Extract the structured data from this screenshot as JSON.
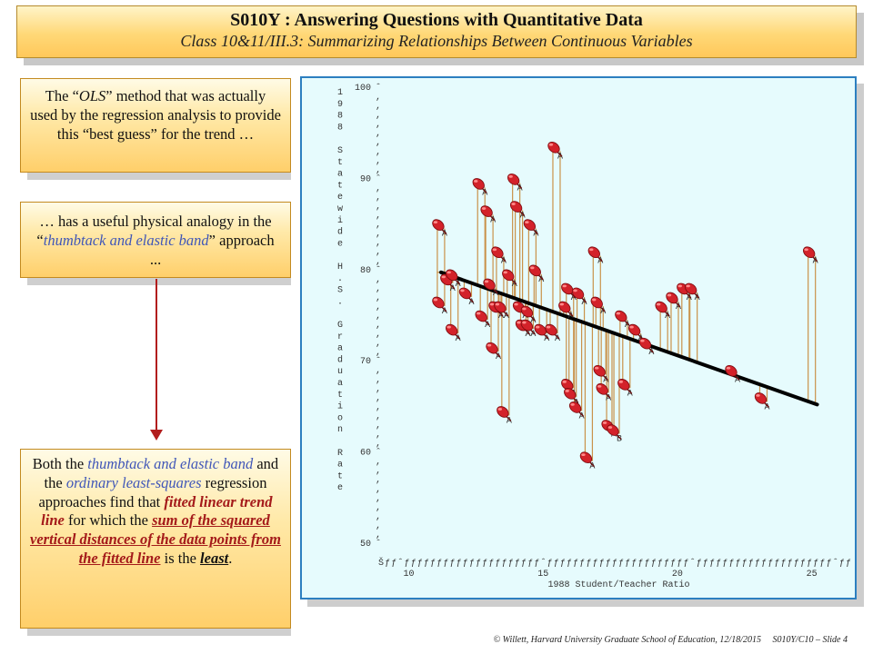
{
  "header": {
    "title": "S010Y : Answering Questions with Quantitative Data",
    "subtitle": "Class 10&11/III.3: Summarizing Relationships Between Continuous Variables"
  },
  "callouts": {
    "box1": {
      "p1": "The “",
      "p2": "OLS",
      "p3": "” method that was actually used by the regression analysis to provide this “best guess” for the trend …"
    },
    "box2": {
      "p1": "… has a useful physical analogy in the “",
      "p2": "thumbtack and elastic band",
      "p3": "” approach ..."
    },
    "box3": {
      "p1": "Both the ",
      "p2": "thumbtack and elastic band",
      "p3": " and the ",
      "p4": "ordinary least-squares",
      "p5": " regression approaches find that ",
      "p6": "fitted linear trend line",
      "p7": " for which the ",
      "p8": "sum of the",
      "p9": " squared vertical distances of the data points from the fitted line",
      "p10": " is the ",
      "p11": "least",
      "p12": "."
    }
  },
  "footer": {
    "credit": "© Willett, Harvard University Graduate School of Education, 12/18/2015",
    "slide": "S010Y/C10 – Slide 4"
  },
  "chart_data": {
    "type": "scatter",
    "xlabel": "1988 Student/Teacher Ratio",
    "ylabel": "1988 Statewide H.S. Graduation Rate",
    "xlim": [
      8.8,
      26.5
    ],
    "ylim": [
      50,
      100
    ],
    "x_ticks": [
      10,
      15,
      20,
      25
    ],
    "y_ticks": [
      100,
      90,
      80,
      70,
      60,
      50
    ],
    "x_axis_chars": "Šƒƒˆƒƒƒƒƒƒƒƒƒƒƒƒƒƒƒƒƒƒƒƒƒˆƒƒƒƒƒƒƒƒƒƒƒƒƒƒƒƒƒƒƒƒƒƒˆƒƒƒƒƒƒƒƒƒƒƒƒƒƒƒƒƒƒƒƒƒˆƒƒ",
    "points": [
      {
        "x": 11.2,
        "y": 84.5,
        "label": "A"
      },
      {
        "x": 11.2,
        "y": 76,
        "label": "A"
      },
      {
        "x": 11.5,
        "y": 78.5,
        "label": "A"
      },
      {
        "x": 11.7,
        "y": 79,
        "label": "A"
      },
      {
        "x": 11.7,
        "y": 73,
        "label": "A"
      },
      {
        "x": 12.2,
        "y": 77,
        "label": "A"
      },
      {
        "x": 12.7,
        "y": 89,
        "label": "A"
      },
      {
        "x": 12.8,
        "y": 74.5,
        "label": "A"
      },
      {
        "x": 13.0,
        "y": 86,
        "label": "A"
      },
      {
        "x": 13.1,
        "y": 78,
        "label": "A"
      },
      {
        "x": 13.2,
        "y": 71,
        "label": "A"
      },
      {
        "x": 13.3,
        "y": 75.5,
        "label": "A"
      },
      {
        "x": 13.4,
        "y": 81.5,
        "label": "A"
      },
      {
        "x": 13.5,
        "y": 75.5,
        "label": "A"
      },
      {
        "x": 13.6,
        "y": 64,
        "label": "A"
      },
      {
        "x": 13.8,
        "y": 79,
        "label": "A"
      },
      {
        "x": 14.0,
        "y": 89.5,
        "label": "A"
      },
      {
        "x": 14.1,
        "y": 86.5,
        "label": "A"
      },
      {
        "x": 14.2,
        "y": 75.5,
        "label": "A"
      },
      {
        "x": 14.3,
        "y": 73.5,
        "label": "A"
      },
      {
        "x": 14.5,
        "y": 75,
        "label": "A"
      },
      {
        "x": 14.5,
        "y": 73.5,
        "label": "A"
      },
      {
        "x": 14.6,
        "y": 84.5,
        "label": "A"
      },
      {
        "x": 14.8,
        "y": 79.5,
        "label": "A"
      },
      {
        "x": 15.0,
        "y": 73,
        "label": "A"
      },
      {
        "x": 15.4,
        "y": 73,
        "label": "A"
      },
      {
        "x": 15.5,
        "y": 93,
        "label": "A"
      },
      {
        "x": 15.9,
        "y": 75.5,
        "label": "A"
      },
      {
        "x": 16.0,
        "y": 77.5,
        "label": "A"
      },
      {
        "x": 16.0,
        "y": 67,
        "label": "A"
      },
      {
        "x": 16.1,
        "y": 66,
        "label": "A"
      },
      {
        "x": 16.3,
        "y": 64.5,
        "label": "A"
      },
      {
        "x": 16.4,
        "y": 77,
        "label": "A"
      },
      {
        "x": 16.7,
        "y": 59,
        "label": "A"
      },
      {
        "x": 17.0,
        "y": 81.5,
        "label": "A"
      },
      {
        "x": 17.1,
        "y": 76,
        "label": "A"
      },
      {
        "x": 17.2,
        "y": 68.5,
        "label": "A"
      },
      {
        "x": 17.3,
        "y": 66.5,
        "label": "A"
      },
      {
        "x": 17.5,
        "y": 62.5,
        "label": "A"
      },
      {
        "x": 17.7,
        "y": 62,
        "label": "B"
      },
      {
        "x": 18.0,
        "y": 74.5,
        "label": "A"
      },
      {
        "x": 18.1,
        "y": 67,
        "label": "A"
      },
      {
        "x": 18.5,
        "y": 73,
        "label": "A"
      },
      {
        "x": 18.9,
        "y": 71.5,
        "label": "A"
      },
      {
        "x": 19.5,
        "y": 75.5,
        "label": "A"
      },
      {
        "x": 19.9,
        "y": 76.5,
        "label": "A"
      },
      {
        "x": 20.3,
        "y": 77.5,
        "label": "A"
      },
      {
        "x": 20.6,
        "y": 77.5,
        "label": "A"
      },
      {
        "x": 22.1,
        "y": 68.5,
        "label": "A"
      },
      {
        "x": 23.2,
        "y": 65.5,
        "label": "A"
      },
      {
        "x": 25.0,
        "y": 81.5,
        "label": "A"
      }
    ],
    "fit_line": {
      "x": [
        11.2,
        25.2
      ],
      "y": [
        79.7,
        65.2
      ]
    }
  }
}
